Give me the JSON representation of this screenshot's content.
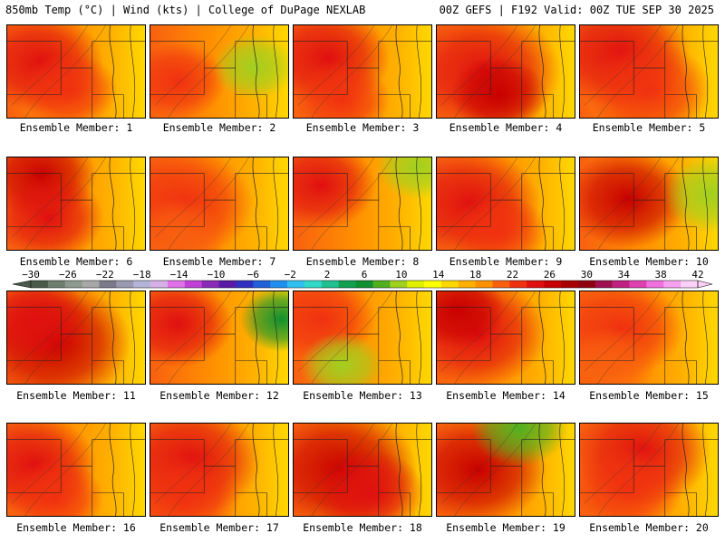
{
  "header": {
    "left_title": "850mb Temp (°C) | Wind (kts) | College of DuPage NEXLAB",
    "right_title": "00Z GEFS | F192 Valid: 00Z TUE SEP 30 2025"
  },
  "panels": [
    {
      "label": "Ensemble Member: 1"
    },
    {
      "label": "Ensemble Member: 2"
    },
    {
      "label": "Ensemble Member: 3"
    },
    {
      "label": "Ensemble Member: 4"
    },
    {
      "label": "Ensemble Member: 5"
    },
    {
      "label": "Ensemble Member: 6"
    },
    {
      "label": "Ensemble Member: 7"
    },
    {
      "label": "Ensemble Member: 8"
    },
    {
      "label": "Ensemble Member: 9"
    },
    {
      "label": "Ensemble Member: 10"
    },
    {
      "label": "Ensemble Member: 11"
    },
    {
      "label": "Ensemble Member: 12"
    },
    {
      "label": "Ensemble Member: 13"
    },
    {
      "label": "Ensemble Member: 14"
    },
    {
      "label": "Ensemble Member: 15"
    },
    {
      "label": "Ensemble Member: 16"
    },
    {
      "label": "Ensemble Member: 17"
    },
    {
      "label": "Ensemble Member: 18"
    },
    {
      "label": "Ensemble Member: 19"
    },
    {
      "label": "Ensemble Member: 20"
    }
  ],
  "colorbar": {
    "ticks": [
      "−30",
      "−26",
      "−22",
      "−18",
      "−14",
      "−10",
      "−6",
      "−2",
      "2",
      "6",
      "10",
      "14",
      "18",
      "22",
      "26",
      "30",
      "34",
      "38",
      "42"
    ],
    "colors": [
      "#4a5a4a",
      "#6e7e6e",
      "#8e9a8e",
      "#a8a8a8",
      "#7a7a8a",
      "#9a9ab0",
      "#b4b4d8",
      "#d8b0e8",
      "#e070e8",
      "#c040d8",
      "#8a2ab8",
      "#5a1aa8",
      "#3030c0",
      "#2060d8",
      "#2090f0",
      "#30c0f0",
      "#30d8c8",
      "#20c090",
      "#10a050",
      "#109030",
      "#50b020",
      "#a0d020",
      "#e0f000",
      "#ffff00",
      "#ffd800",
      "#ffb000",
      "#ff9000",
      "#f86010",
      "#f03010",
      "#e01010",
      "#c80000",
      "#a80000",
      "#900010",
      "#a01050",
      "#c02080",
      "#e040b0",
      "#f070e0",
      "#f8a0f0",
      "#fcd0f8"
    ],
    "warm_colors": [
      "#ffd800",
      "#ffb000",
      "#ff9000",
      "#f86010",
      "#f03010",
      "#e01010",
      "#c80000"
    ],
    "cool_colors": [
      "#a0d020",
      "#50b020",
      "#109030"
    ]
  },
  "warm_cores": [
    [
      [
        0.25,
        0.4,
        0.45,
        "#e01010"
      ],
      [
        0.45,
        0.7,
        0.35,
        "#f03010"
      ]
    ],
    [
      [
        0.2,
        0.6,
        0.35,
        "#f03010"
      ],
      [
        0.75,
        0.45,
        0.3,
        "#a0d020"
      ]
    ],
    [
      [
        0.25,
        0.35,
        0.45,
        "#e01010"
      ],
      [
        0.35,
        0.8,
        0.35,
        "#f03010"
      ]
    ],
    [
      [
        0.35,
        0.5,
        0.55,
        "#e01010"
      ],
      [
        0.45,
        0.75,
        0.35,
        "#c80000"
      ]
    ],
    [
      [
        0.3,
        0.3,
        0.5,
        "#e01010"
      ],
      [
        0.5,
        0.7,
        0.45,
        "#f03010"
      ]
    ],
    [
      [
        0.25,
        0.2,
        0.4,
        "#c80000"
      ],
      [
        0.3,
        0.65,
        0.4,
        "#e01010"
      ]
    ],
    [
      [
        0.25,
        0.5,
        0.5,
        "#f03010"
      ],
      [
        0.2,
        0.85,
        0.35,
        "#f86010"
      ]
    ],
    [
      [
        0.2,
        0.3,
        0.4,
        "#e01010"
      ],
      [
        0.9,
        0.1,
        0.3,
        "#a0d020"
      ]
    ],
    [
      [
        0.25,
        0.5,
        0.5,
        "#e01010"
      ],
      [
        0.45,
        0.8,
        0.35,
        "#f03010"
      ]
    ],
    [
      [
        0.35,
        0.45,
        0.45,
        "#c80000"
      ],
      [
        0.95,
        0.4,
        0.35,
        "#a0d020"
      ]
    ],
    [
      [
        0.35,
        0.55,
        0.55,
        "#c80000"
      ],
      [
        0.2,
        0.3,
        0.4,
        "#e01010"
      ]
    ],
    [
      [
        0.2,
        0.35,
        0.4,
        "#e01010"
      ],
      [
        0.95,
        0.3,
        0.3,
        "#109030"
      ]
    ],
    [
      [
        0.2,
        0.3,
        0.4,
        "#f03010"
      ],
      [
        0.35,
        0.8,
        0.3,
        "#a0d020"
      ]
    ],
    [
      [
        0.3,
        0.45,
        0.5,
        "#e01010"
      ],
      [
        0.15,
        0.2,
        0.35,
        "#c80000"
      ]
    ],
    [
      [
        0.3,
        0.4,
        0.45,
        "#f03010"
      ],
      [
        0.2,
        0.8,
        0.35,
        "#f86010"
      ]
    ],
    [
      [
        0.2,
        0.45,
        0.45,
        "#e01010"
      ],
      [
        0.35,
        0.8,
        0.35,
        "#f03010"
      ]
    ],
    [
      [
        0.3,
        0.4,
        0.5,
        "#e01010"
      ],
      [
        0.25,
        0.8,
        0.4,
        "#f03010"
      ]
    ],
    [
      [
        0.35,
        0.5,
        0.55,
        "#c80000"
      ],
      [
        0.55,
        0.75,
        0.4,
        "#e01010"
      ]
    ],
    [
      [
        0.3,
        0.5,
        0.5,
        "#c80000"
      ],
      [
        0.6,
        0.05,
        0.35,
        "#50b020"
      ]
    ],
    [
      [
        0.45,
        0.3,
        0.5,
        "#e01010"
      ],
      [
        0.35,
        0.7,
        0.4,
        "#f03010"
      ]
    ]
  ]
}
